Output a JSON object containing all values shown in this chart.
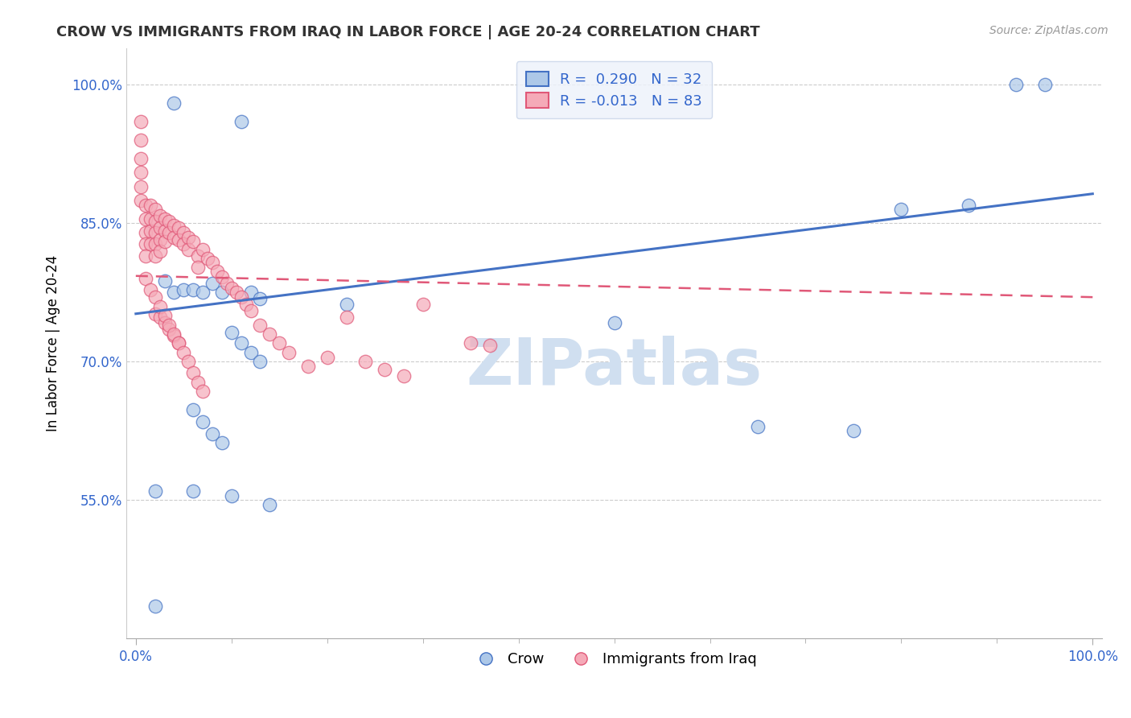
{
  "title": "CROW VS IMMIGRANTS FROM IRAQ IN LABOR FORCE | AGE 20-24 CORRELATION CHART",
  "source": "Source: ZipAtlas.com",
  "ylabel": "In Labor Force | Age 20-24",
  "xlabel": "",
  "xlim": [
    -0.01,
    1.01
  ],
  "ylim": [
    0.4,
    1.04
  ],
  "yticks": [
    0.55,
    0.7,
    0.85,
    1.0
  ],
  "ytick_labels": [
    "55.0%",
    "70.0%",
    "85.0%",
    "100.0%"
  ],
  "xticks": [
    0.0,
    1.0
  ],
  "xtick_labels": [
    "0.0%",
    "100.0%"
  ],
  "blue_R": 0.29,
  "blue_N": 32,
  "pink_R": -0.013,
  "pink_N": 83,
  "blue_color": "#adc8e8",
  "pink_color": "#f5aab8",
  "blue_line_color": "#4472c4",
  "pink_line_color": "#e05878",
  "watermark": "ZIPatlas",
  "watermark_color": "#d0dff0",
  "blue_line_x0": 0.0,
  "blue_line_y0": 0.752,
  "blue_line_x1": 1.0,
  "blue_line_y1": 0.882,
  "pink_line_x0": 0.0,
  "pink_line_y0": 0.793,
  "pink_line_x1": 1.0,
  "pink_line_y1": 0.77,
  "blue_scatter_x": [
    0.02,
    0.04,
    0.11,
    0.22,
    0.03,
    0.04,
    0.05,
    0.06,
    0.07,
    0.08,
    0.09,
    0.12,
    0.13,
    0.06,
    0.07,
    0.08,
    0.09,
    0.1,
    0.11,
    0.12,
    0.13,
    0.5,
    0.65,
    0.75,
    0.8,
    0.87,
    0.92,
    0.95,
    0.02,
    0.06,
    0.1,
    0.14
  ],
  "blue_scatter_y": [
    0.435,
    0.98,
    0.96,
    0.762,
    0.788,
    0.775,
    0.778,
    0.778,
    0.775,
    0.785,
    0.775,
    0.775,
    0.768,
    0.648,
    0.635,
    0.622,
    0.612,
    0.732,
    0.72,
    0.71,
    0.7,
    0.742,
    0.63,
    0.625,
    0.865,
    0.87,
    1.0,
    1.0,
    0.56,
    0.56,
    0.555,
    0.545
  ],
  "pink_scatter_x": [
    0.005,
    0.005,
    0.005,
    0.005,
    0.005,
    0.005,
    0.01,
    0.01,
    0.01,
    0.01,
    0.01,
    0.015,
    0.015,
    0.015,
    0.015,
    0.02,
    0.02,
    0.02,
    0.02,
    0.02,
    0.025,
    0.025,
    0.025,
    0.025,
    0.03,
    0.03,
    0.03,
    0.035,
    0.035,
    0.04,
    0.04,
    0.045,
    0.045,
    0.05,
    0.05,
    0.055,
    0.055,
    0.06,
    0.065,
    0.065,
    0.07,
    0.075,
    0.08,
    0.085,
    0.09,
    0.095,
    0.1,
    0.105,
    0.11,
    0.115,
    0.12,
    0.13,
    0.14,
    0.15,
    0.16,
    0.18,
    0.2,
    0.22,
    0.24,
    0.26,
    0.28,
    0.3,
    0.35,
    0.37,
    0.02,
    0.025,
    0.03,
    0.035,
    0.04,
    0.045,
    0.01,
    0.015,
    0.02,
    0.025,
    0.03,
    0.035,
    0.04,
    0.045,
    0.05,
    0.055,
    0.06,
    0.065,
    0.07
  ],
  "pink_scatter_y": [
    0.96,
    0.94,
    0.92,
    0.905,
    0.89,
    0.875,
    0.87,
    0.855,
    0.84,
    0.828,
    0.815,
    0.87,
    0.855,
    0.842,
    0.828,
    0.865,
    0.852,
    0.84,
    0.828,
    0.815,
    0.858,
    0.845,
    0.832,
    0.82,
    0.855,
    0.842,
    0.83,
    0.852,
    0.84,
    0.848,
    0.835,
    0.845,
    0.832,
    0.84,
    0.828,
    0.835,
    0.822,
    0.83,
    0.815,
    0.802,
    0.822,
    0.812,
    0.808,
    0.798,
    0.792,
    0.785,
    0.78,
    0.775,
    0.77,
    0.762,
    0.755,
    0.74,
    0.73,
    0.72,
    0.71,
    0.695,
    0.705,
    0.748,
    0.7,
    0.692,
    0.685,
    0.762,
    0.72,
    0.718,
    0.752,
    0.748,
    0.742,
    0.735,
    0.728,
    0.72,
    0.79,
    0.778,
    0.77,
    0.76,
    0.75,
    0.74,
    0.73,
    0.72,
    0.71,
    0.7,
    0.688,
    0.678,
    0.668
  ],
  "legend_box_color": "#edf2fb",
  "legend_border_color": "#c8d4e8"
}
